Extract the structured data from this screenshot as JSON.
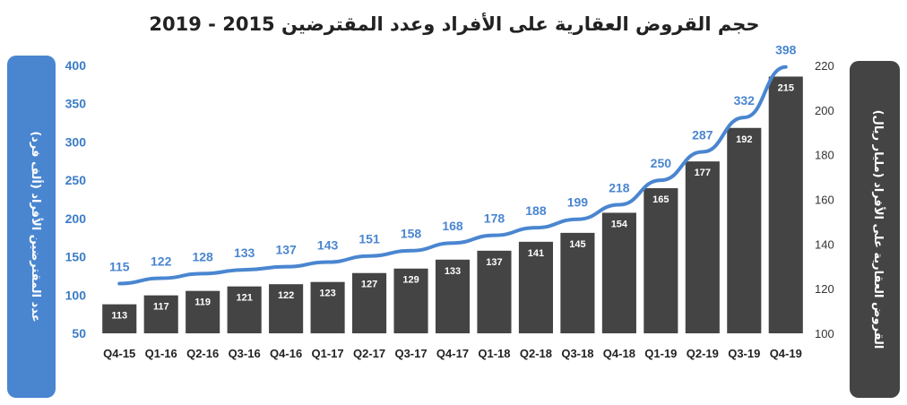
{
  "chart_data": {
    "type": "bar",
    "title": "حجم القروض العقارية على الأفراد وعدد المقترضين 2015 - 2019",
    "categories": [
      "Q4-15",
      "Q1-16",
      "Q2-16",
      "Q3-16",
      "Q4-16",
      "Q1-17",
      "Q2-17",
      "Q3-17",
      "Q4-17",
      "Q1-18",
      "Q2-18",
      "Q3-18",
      "Q4-18",
      "Q1-19",
      "Q2-19",
      "Q3-19",
      "Q4-19"
    ],
    "series": [
      {
        "type": "bar",
        "axis": "right",
        "values": [
          113,
          117,
          119,
          121,
          122,
          123,
          127,
          129,
          133,
          137,
          141,
          145,
          154,
          165,
          177,
          192,
          215
        ],
        "color": "#444444"
      },
      {
        "type": "line",
        "axis": "left",
        "values": [
          115,
          122,
          128,
          133,
          137,
          143,
          151,
          158,
          168,
          178,
          188,
          199,
          218,
          250,
          287,
          332,
          398
        ],
        "color": "#4a86d0"
      }
    ],
    "left_axis": {
      "label": "عدد المقترضين الأفراد (ألف فرد)",
      "range": [
        50,
        400
      ],
      "ticks": [
        50,
        100,
        150,
        200,
        250,
        300,
        350,
        400
      ],
      "color": "#3a7cc4"
    },
    "right_axis": {
      "label": "القروض العقارية على الأفراد (مليار ريال)",
      "range": [
        100,
        220
      ],
      "ticks": [
        100,
        120,
        140,
        160,
        180,
        200,
        220
      ],
      "color": "#444444"
    },
    "grid": false,
    "legend": "none"
  }
}
